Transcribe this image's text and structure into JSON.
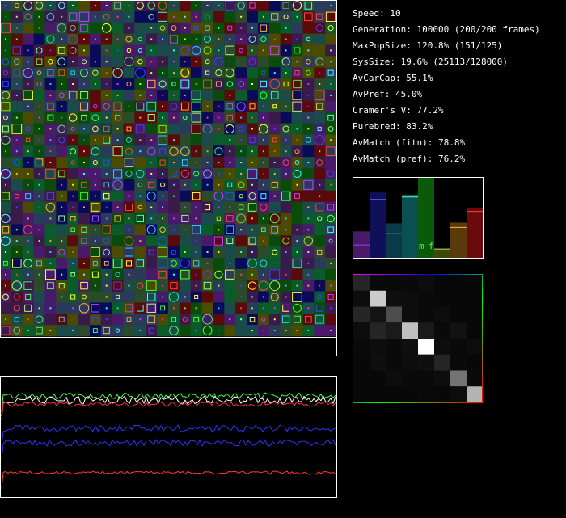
{
  "stats": [
    {
      "label": "Speed: 10"
    },
    {
      "label": "Generation: 100000 (200/200 frames)"
    },
    {
      "label": "MaxPopSize: 120.8% (151/125)"
    },
    {
      "label": "SysSize: 19.6% (25113/128000)"
    },
    {
      "label": "AvCarCap: 55.1%"
    },
    {
      "label": "AvPref: 45.0%"
    },
    {
      "label": "Cramer's V: 77.2%"
    },
    {
      "label": "Purebred: 83.2%"
    },
    {
      "label": "AvMatch (fitn): 78.8%"
    },
    {
      "label": "AvMatch (pref): 76.2%"
    }
  ],
  "bars": {
    "values": [
      0.33,
      0.82,
      0.43,
      0.79,
      1.0,
      0.11,
      0.44,
      0.62
    ],
    "markers": [
      0.16,
      0.73,
      0.3,
      0.76,
      null,
      0.11,
      0.38,
      0.58
    ],
    "colors": [
      "#4a1a6a",
      "#10105a",
      "#0a3a4a",
      "#0a5050",
      "#0a5a0a",
      "#3a4a0a",
      "#5a3a0a",
      "#6a0a0a"
    ],
    "marker_colors": [
      "#a040e0",
      "#6060ff",
      "#40c0e0",
      "#60ffd0",
      null,
      "#c0e060",
      "#ffb040",
      "#ff4040"
    ],
    "labels": [
      "m",
      "f"
    ]
  },
  "heatmap": [
    [
      0.15,
      0.04,
      0.04,
      0.04,
      0.05,
      0.03,
      0.03,
      0.03
    ],
    [
      0.05,
      0.8,
      0.06,
      0.05,
      0.04,
      0.03,
      0.03,
      0.03
    ],
    [
      0.15,
      0.08,
      0.3,
      0.05,
      0.04,
      0.05,
      0.03,
      0.03
    ],
    [
      0.05,
      0.15,
      0.1,
      0.75,
      0.1,
      0.04,
      0.07,
      0.03
    ],
    [
      0.04,
      0.05,
      0.04,
      0.06,
      1.0,
      0.05,
      0.04,
      0.05
    ],
    [
      0.03,
      0.06,
      0.04,
      0.05,
      0.06,
      0.15,
      0.04,
      0.03
    ],
    [
      0.03,
      0.03,
      0.05,
      0.04,
      0.04,
      0.05,
      0.45,
      0.04
    ],
    [
      0.03,
      0.03,
      0.03,
      0.03,
      0.04,
      0.03,
      0.05,
      0.7
    ]
  ]
}
